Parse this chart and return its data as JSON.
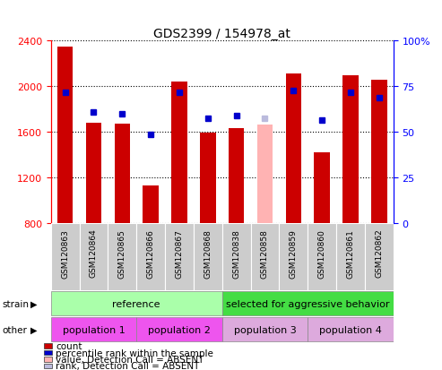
{
  "title": "GDS2399 / 154978_at",
  "samples": [
    "GSM120863",
    "GSM120864",
    "GSM120865",
    "GSM120866",
    "GSM120867",
    "GSM120868",
    "GSM120838",
    "GSM120858",
    "GSM120859",
    "GSM120860",
    "GSM120861",
    "GSM120862"
  ],
  "bar_values": [
    2340,
    1680,
    1670,
    1130,
    2040,
    1590,
    1630,
    1660,
    2110,
    1420,
    2090,
    2050
  ],
  "bar_colors": [
    "#cc0000",
    "#cc0000",
    "#cc0000",
    "#cc0000",
    "#cc0000",
    "#cc0000",
    "#cc0000",
    "#ffb3b3",
    "#cc0000",
    "#cc0000",
    "#cc0000",
    "#cc0000"
  ],
  "dot_values": [
    1940,
    1770,
    1760,
    1580,
    1940,
    1720,
    1740,
    1720,
    1960,
    1700,
    1940,
    1900
  ],
  "dot_colors": [
    "#0000cc",
    "#0000cc",
    "#0000cc",
    "#0000cc",
    "#0000cc",
    "#0000cc",
    "#0000cc",
    "#bbbbdd",
    "#0000cc",
    "#0000cc",
    "#0000cc",
    "#0000cc"
  ],
  "ylim_left": [
    800,
    2400
  ],
  "ylim_right": [
    0,
    100
  ],
  "yticks_left": [
    800,
    1200,
    1600,
    2000,
    2400
  ],
  "yticks_right": [
    0,
    25,
    50,
    75,
    100
  ],
  "strain_groups": [
    {
      "label": "reference",
      "start": 0,
      "end": 5,
      "color": "#aaffaa"
    },
    {
      "label": "selected for aggressive behavior",
      "start": 6,
      "end": 11,
      "color": "#44dd44"
    }
  ],
  "other_groups": [
    {
      "label": "population 1",
      "start": 0,
      "end": 2,
      "color": "#ee55ee"
    },
    {
      "label": "population 2",
      "start": 3,
      "end": 5,
      "color": "#ee55ee"
    },
    {
      "label": "population 3",
      "start": 6,
      "end": 8,
      "color": "#ddaadd"
    },
    {
      "label": "population 4",
      "start": 9,
      "end": 11,
      "color": "#ddaadd"
    }
  ],
  "legend_items": [
    {
      "label": "count",
      "color": "#cc0000"
    },
    {
      "label": "percentile rank within the sample",
      "color": "#0000cc"
    },
    {
      "label": "value, Detection Call = ABSENT",
      "color": "#ffb3b3"
    },
    {
      "label": "rank, Detection Call = ABSENT",
      "color": "#bbbbdd"
    }
  ],
  "bar_bottom": 800,
  "bar_width": 0.55,
  "dot_size": 5,
  "xlabel_fontsize": 6.5,
  "title_fontsize": 10,
  "tick_fontsize": 8,
  "legend_fontsize": 7.5,
  "group_fontsize": 8,
  "label_fontsize": 7.5
}
